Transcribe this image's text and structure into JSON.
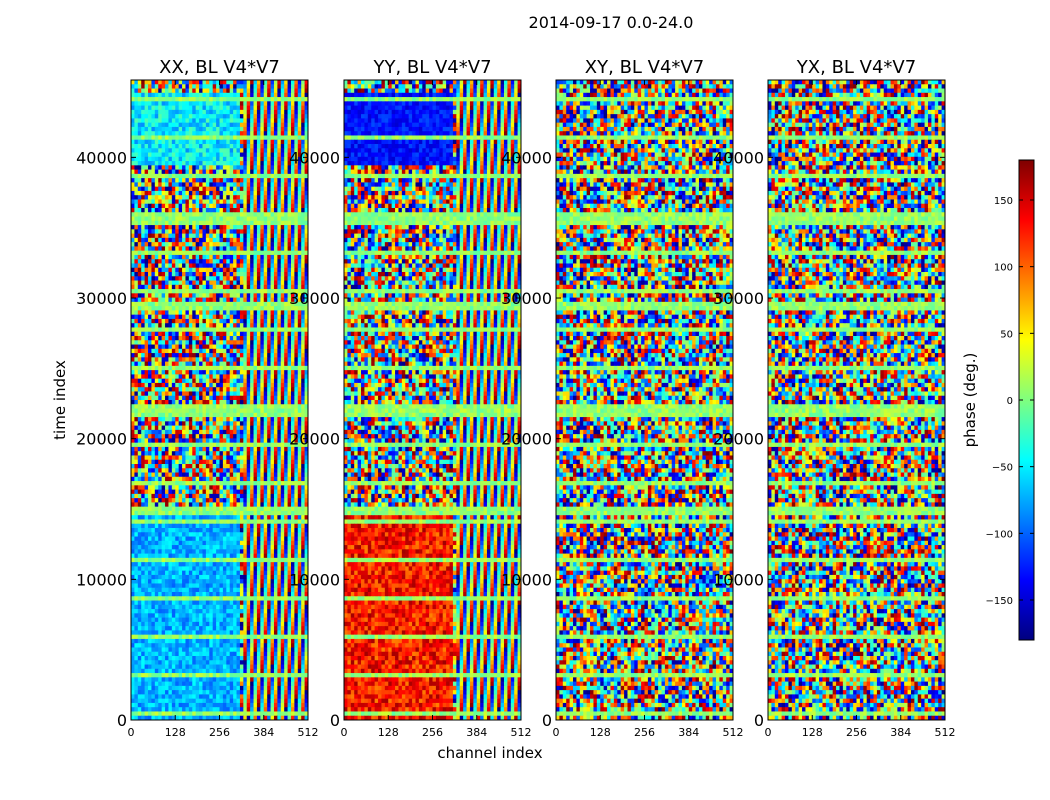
{
  "figure": {
    "suptitle": "2014-09-17 0.0-24.0",
    "xlabel": "channel index",
    "ylabel": "time index"
  },
  "chart_data": [
    {
      "type": "heatmap",
      "title": "XX, BL V4*V7",
      "xlim": [
        0,
        512
      ],
      "ylim": [
        0,
        45500
      ],
      "xticks": [
        0,
        128,
        256,
        384,
        512
      ],
      "yticks": [
        0,
        10000,
        20000,
        30000,
        40000
      ]
    },
    {
      "type": "heatmap",
      "title": "YY, BL V4*V7",
      "xlim": [
        0,
        512
      ],
      "ylim": [
        0,
        45500
      ],
      "xticks": [
        0,
        128,
        256,
        384,
        512
      ],
      "yticks": [
        0,
        10000,
        20000,
        30000,
        40000
      ]
    },
    {
      "type": "heatmap",
      "title": "XY, BL V4*V7",
      "xlim": [
        0,
        512
      ],
      "ylim": [
        0,
        45500
      ],
      "xticks": [
        0,
        128,
        256,
        384,
        512
      ],
      "yticks": [
        0,
        10000,
        20000,
        30000,
        40000
      ]
    },
    {
      "type": "heatmap",
      "title": "YX, BL V4*V7",
      "xlim": [
        0,
        512
      ],
      "ylim": [
        0,
        45500
      ],
      "xticks": [
        0,
        128,
        256,
        384,
        512
      ],
      "yticks": [
        0,
        10000,
        20000,
        30000,
        40000
      ]
    }
  ],
  "colorbar": {
    "label": "phase (deg.)",
    "range": [
      -180,
      180
    ],
    "ticks": [
      -150,
      -100,
      -50,
      0,
      50,
      100,
      150
    ],
    "colormap": "jet",
    "colors": [
      "#00007f",
      "#0000ff",
      "#007fff",
      "#00ffff",
      "#7fff7f",
      "#ffff00",
      "#ff7f00",
      "#ff0000",
      "#7f0000"
    ]
  }
}
